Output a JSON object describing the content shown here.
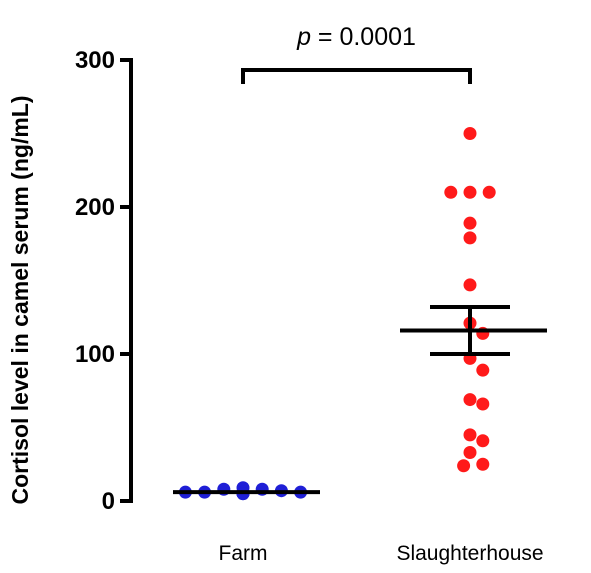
{
  "chart_data": {
    "type": "scatter",
    "ylabel": "Cortisol level in camel serum (ng/mL)",
    "xlabel": "",
    "ylim": [
      0,
      300
    ],
    "yticks": [
      0,
      100,
      200,
      300
    ],
    "categories": [
      "Farm",
      "Slaughterhouse"
    ],
    "series": [
      {
        "name": "Farm",
        "color": "#1f1fd6",
        "values": [
          9,
          8,
          6,
          6,
          5,
          5,
          5,
          6,
          6,
          7,
          8
        ],
        "mean": 6,
        "sem": 0.5
      },
      {
        "name": "Slaughterhouse",
        "color": "#ff1a1a",
        "values": [
          250,
          210,
          210,
          210,
          189,
          179,
          147,
          121,
          114,
          97,
          89,
          69,
          66,
          45,
          41,
          33,
          25,
          24
        ],
        "mean": 116,
        "sem_upper": 132,
        "sem_lower": 100
      }
    ],
    "annotation": {
      "prefix": "p",
      "text": " = 0.0001"
    }
  }
}
